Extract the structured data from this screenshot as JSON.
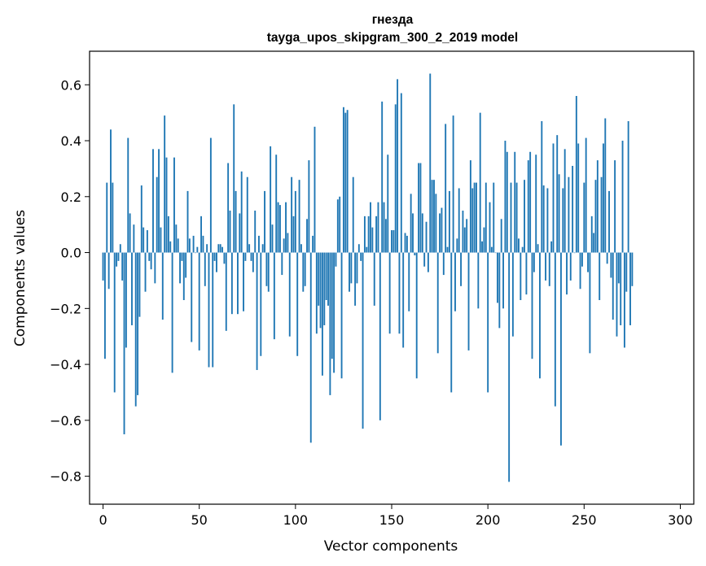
{
  "chart_data": {
    "type": "bar",
    "title": "гнезда",
    "subtitle": "tayga_upos_skipgram_300_2_2019 model",
    "xlabel": "Vector components",
    "ylabel": "Components values",
    "xlim": [
      -7,
      307
    ],
    "ylim": [
      -0.9,
      0.72
    ],
    "xticks": [
      0,
      50,
      100,
      150,
      200,
      250,
      300
    ],
    "yticks": [
      -0.8,
      -0.6,
      -0.4,
      -0.2,
      0.0,
      0.2,
      0.4,
      0.6
    ],
    "ytick_labels": [
      "−0.8",
      "−0.6",
      "−0.4",
      "−0.2",
      "0.0",
      "0.2",
      "0.4",
      "0.6"
    ],
    "xtick_labels": [
      "0",
      "50",
      "100",
      "150",
      "200",
      "250",
      "300"
    ],
    "bar_color": "#1f77b4",
    "grid": false,
    "values": [
      -0.1,
      -0.38,
      0.25,
      -0.13,
      0.44,
      0.25,
      -0.5,
      -0.05,
      -0.03,
      0.03,
      -0.1,
      -0.65,
      -0.34,
      0.41,
      0.14,
      -0.26,
      0.1,
      -0.55,
      -0.51,
      -0.23,
      0.24,
      0.09,
      -0.14,
      0.08,
      -0.03,
      -0.06,
      0.37,
      -0.11,
      0.27,
      0.37,
      0.09,
      -0.24,
      0.49,
      0.34,
      0.13,
      0.04,
      -0.43,
      0.34,
      0.1,
      0.05,
      -0.11,
      -0.03,
      -0.17,
      -0.09,
      0.22,
      0.05,
      -0.32,
      0.06,
      0.0,
      0.02,
      -0.35,
      0.13,
      0.06,
      -0.12,
      0.03,
      -0.41,
      0.41,
      -0.41,
      -0.03,
      -0.07,
      0.03,
      0.03,
      0.02,
      -0.04,
      -0.28,
      0.32,
      0.15,
      -0.22,
      0.53,
      0.22,
      -0.22,
      0.14,
      0.29,
      -0.21,
      -0.03,
      0.27,
      0.03,
      -0.03,
      -0.07,
      0.15,
      -0.42,
      0.06,
      -0.37,
      0.03,
      0.22,
      -0.12,
      -0.14,
      0.38,
      0.1,
      -0.31,
      0.35,
      0.18,
      0.17,
      -0.08,
      0.05,
      0.18,
      0.07,
      -0.3,
      0.27,
      0.13,
      0.22,
      -0.37,
      0.26,
      0.03,
      -0.14,
      -0.12,
      0.12,
      0.33,
      -0.68,
      0.06,
      0.45,
      -0.29,
      -0.19,
      -0.27,
      -0.44,
      -0.26,
      -0.17,
      -0.19,
      -0.51,
      -0.38,
      -0.43,
      -0.05,
      0.19,
      0.2,
      -0.45,
      0.52,
      0.5,
      0.51,
      -0.14,
      -0.11,
      0.27,
      -0.19,
      -0.11,
      0.03,
      -0.03,
      -0.63,
      0.13,
      0.02,
      0.13,
      0.18,
      0.09,
      -0.19,
      0.13,
      0.18,
      -0.6,
      0.54,
      0.18,
      0.12,
      0.35,
      -0.29,
      0.08,
      0.08,
      0.53,
      0.62,
      -0.29,
      0.57,
      -0.34,
      0.07,
      0.06,
      -0.21,
      0.21,
      0.14,
      -0.01,
      -0.45,
      0.32,
      0.32,
      0.14,
      -0.05,
      0.11,
      -0.07,
      0.64,
      0.26,
      0.26,
      0.21,
      -0.36,
      0.14,
      0.16,
      -0.08,
      0.46,
      0.02,
      0.22,
      -0.5,
      0.49,
      -0.21,
      0.05,
      0.23,
      -0.12,
      0.15,
      0.09,
      0.12,
      -0.35,
      0.33,
      0.23,
      0.25,
      0.25,
      -0.2,
      0.5,
      0.04,
      0.09,
      0.25,
      -0.5,
      0.18,
      0.02,
      0.25,
      0.0,
      -0.18,
      -0.27,
      0.12,
      -0.2,
      0.4,
      0.36,
      -0.82,
      0.25,
      -0.3,
      0.36,
      0.25,
      0.05,
      -0.17,
      0.02,
      0.26,
      -0.15,
      0.33,
      0.36,
      -0.38,
      -0.07,
      0.35,
      0.03,
      -0.45,
      0.47,
      0.24,
      -0.1,
      0.23,
      -0.12,
      0.04,
      0.39,
      -0.55,
      0.42,
      0.28,
      -0.69,
      0.23,
      0.37,
      -0.15,
      0.27,
      -0.1,
      0.31,
      0.0,
      0.56,
      0.39,
      -0.13,
      -0.05,
      0.25,
      0.41,
      -0.07,
      -0.36,
      0.13,
      0.07,
      0.26,
      0.33,
      -0.17,
      0.27,
      0.39,
      0.48,
      -0.04,
      0.22,
      -0.09,
      -0.24,
      0.33,
      -0.3,
      -0.11,
      -0.26,
      0.4,
      -0.34,
      -0.14,
      0.47,
      -0.26,
      -0.12
    ]
  }
}
